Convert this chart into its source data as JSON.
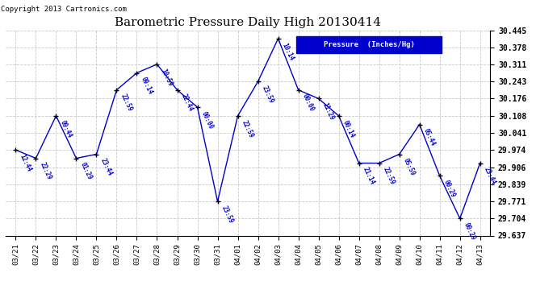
{
  "title": "Barometric Pressure Daily High 20130414",
  "copyright": "Copyright 2013 Cartronics.com",
  "legend_label": "Pressure  (Inches/Hg)",
  "x_labels": [
    "03/21",
    "03/22",
    "03/23",
    "03/24",
    "03/25",
    "03/26",
    "03/27",
    "03/28",
    "03/29",
    "03/30",
    "03/31",
    "04/01",
    "04/02",
    "04/03",
    "04/04",
    "04/05",
    "04/06",
    "04/07",
    "04/08",
    "04/09",
    "04/10",
    "04/11",
    "04/12",
    "04/13"
  ],
  "y_values": [
    29.974,
    29.941,
    30.108,
    29.941,
    29.957,
    30.21,
    30.277,
    30.311,
    30.21,
    30.142,
    29.771,
    30.108,
    30.243,
    30.412,
    30.21,
    30.176,
    30.108,
    29.922,
    29.922,
    29.957,
    30.074,
    29.872,
    29.704,
    29.922
  ],
  "time_labels": [
    "12:44",
    "22:29",
    "09:44",
    "01:29",
    "23:44",
    "22:59",
    "09:14",
    "10:59",
    "22:44",
    "00:00",
    "23:59",
    "22:59",
    "23:59",
    "10:14",
    "00:00",
    "11:29",
    "00:14",
    "21:14",
    "22:59",
    "05:59",
    "05:44",
    "00:29",
    "00:29",
    "23:44"
  ],
  "ylim_min": 29.637,
  "ylim_max": 30.445,
  "yticks": [
    29.637,
    29.704,
    29.771,
    29.839,
    29.906,
    29.974,
    30.041,
    30.108,
    30.176,
    30.243,
    30.311,
    30.378,
    30.445
  ],
  "line_color": "#0000cc",
  "marker_color": "#000000",
  "grid_color": "#c8c8c8",
  "bg_color": "#ffffff",
  "title_color": "#000000",
  "label_color": "#0000cc",
  "copyright_color": "#000000",
  "legend_bg": "#0000cc",
  "legend_text_color": "#ffffff",
  "figwidth": 6.9,
  "figheight": 3.75,
  "dpi": 100
}
